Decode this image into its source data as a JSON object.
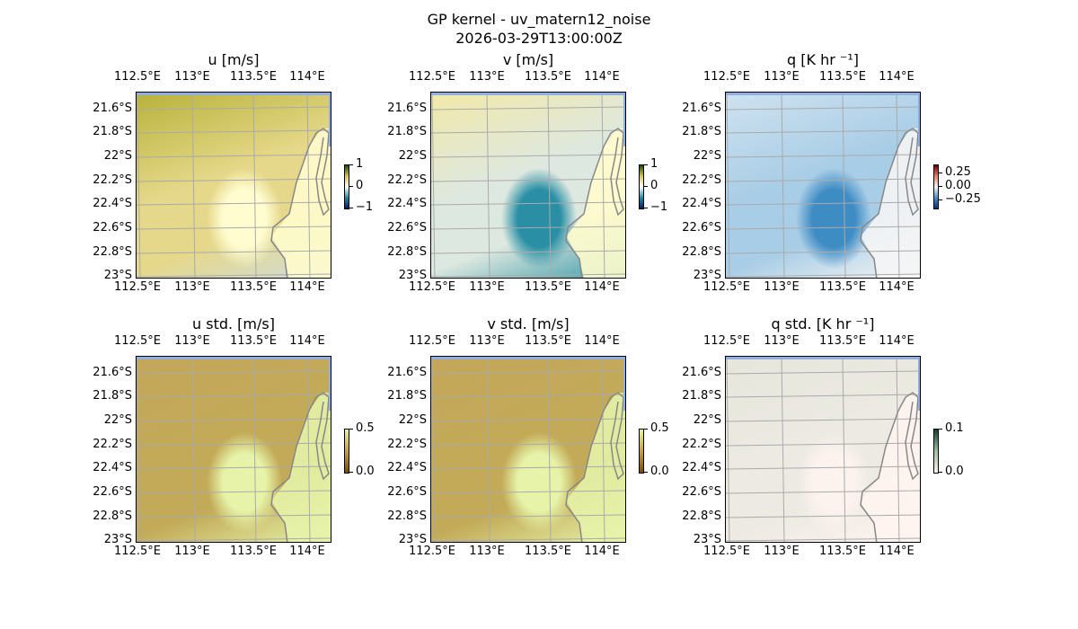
{
  "figure": {
    "title": "GP kernel - uv_matern12_noise",
    "subtitle": "2026-03-29T13:00:00Z"
  },
  "lon_ticks": [
    "112.5°E",
    "113°E",
    "113.5°E",
    "114°E"
  ],
  "lat_ticks": [
    "21.6°S",
    "21.8°S",
    "22°S",
    "22.2°S",
    "22.4°S",
    "22.6°S",
    "22.8°S",
    "23°S"
  ],
  "panels": [
    {
      "title": "u [m/s]",
      "cbar_ticks": [
        "1",
        "0",
        "−1"
      ],
      "colors": [
        "#b8b23a",
        "#e6d88a",
        "#fffcd0",
        "#cfdcd8"
      ],
      "cmap": [
        "#0a1a5c",
        "#2b8aa0",
        "#ffffff",
        "#d8c060",
        "#1a4a10"
      ]
    },
    {
      "title": "v [m/s]",
      "cbar_ticks": [
        "1",
        "0",
        "−1"
      ],
      "colors": [
        "#f2e9a8",
        "#dde8e0",
        "#2a8fa5",
        "#3a9aa8"
      ],
      "cmap": [
        "#0a1a5c",
        "#2b8aa0",
        "#ffffff",
        "#d8c060",
        "#1a4a10"
      ]
    },
    {
      "title": "q [K hr ⁻¹]",
      "cbar_ticks": [
        "0.25",
        "0.00",
        "−0.25"
      ],
      "colors": [
        "#cfe2f0",
        "#a8cde6",
        "#3e8cc4",
        "#f5f5f5"
      ],
      "cmap": [
        "#0a3070",
        "#4a90c8",
        "#f5f5f5",
        "#e08060",
        "#700010"
      ]
    },
    {
      "title": "u std. [m/s]",
      "cbar_ticks": [
        "0.5",
        "0.0"
      ],
      "colors": [
        "#c4a75a",
        "#c2aa58",
        "#e6f3a8",
        "#e6f3a8"
      ],
      "cmap": [
        "#7a4a10",
        "#c4a050",
        "#e6f3a8"
      ]
    },
    {
      "title": "v std. [m/s]",
      "cbar_ticks": [
        "0.5",
        "0.0"
      ],
      "colors": [
        "#c4a75a",
        "#c2aa58",
        "#e6f3a8",
        "#e6f3a8"
      ],
      "cmap": [
        "#7a4a10",
        "#c4a050",
        "#e6f3a8"
      ]
    },
    {
      "title": "q std. [K hr ⁻¹]",
      "cbar_ticks": [
        "0.1",
        "0.0"
      ],
      "colors": [
        "#e6e6dc",
        "#eceae2",
        "#fcf2ee",
        "#fff4f0"
      ],
      "cmap": [
        "#fff2ee",
        "#a0c0a0",
        "#104030"
      ]
    }
  ]
}
